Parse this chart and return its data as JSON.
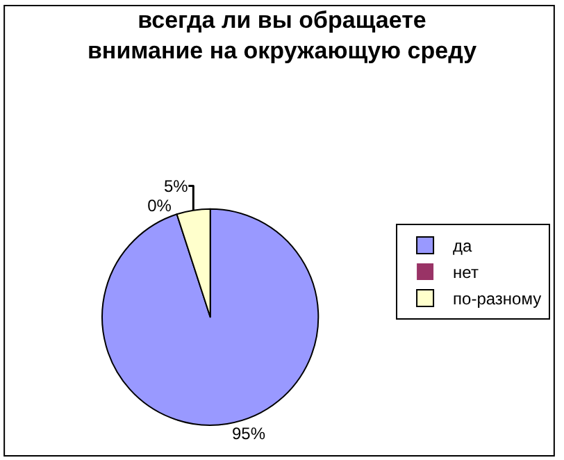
{
  "chart_data": {
    "type": "pie",
    "title": "всегда ли вы обращаете\nвнимание на окружающую среду",
    "categories": [
      "да",
      "нет",
      "по-разному"
    ],
    "values": [
      95,
      0,
      5
    ],
    "colors": [
      "#9999ff",
      "#993366",
      "#ffffcc"
    ],
    "value_labels": [
      "95%",
      "0%",
      "5%"
    ],
    "legend": "right"
  }
}
